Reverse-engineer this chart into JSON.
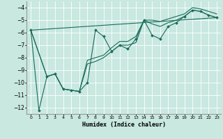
{
  "xlabel": "Humidex (Indice chaleur)",
  "bg_color": "#c8e8e0",
  "grid_color": "#ffffff",
  "line_color": "#1a6b5a",
  "xlim": [
    -0.5,
    23.5
  ],
  "ylim": [
    -12.5,
    -3.5
  ],
  "yticks": [
    -12,
    -11,
    -10,
    -9,
    -8,
    -7,
    -6,
    -5,
    -4
  ],
  "xticks": [
    0,
    1,
    2,
    3,
    4,
    5,
    6,
    7,
    8,
    9,
    10,
    11,
    12,
    13,
    14,
    15,
    16,
    17,
    18,
    19,
    20,
    21,
    22,
    23
  ],
  "series1_x": [
    0,
    1,
    2,
    3,
    4,
    5,
    6,
    7,
    8,
    9,
    10,
    11,
    12,
    13,
    14,
    15,
    16,
    17,
    18,
    19,
    20,
    21,
    22,
    23
  ],
  "series1_y": [
    -5.8,
    -12.2,
    -9.5,
    -9.3,
    -10.5,
    -10.6,
    -10.7,
    -10.0,
    -5.8,
    -6.3,
    -7.5,
    -7.0,
    -7.3,
    -6.5,
    -5.0,
    -6.2,
    -6.5,
    -5.5,
    -5.2,
    -4.7,
    -4.2,
    -4.3,
    -4.6,
    -4.8
  ],
  "series2_x": [
    0,
    2,
    3,
    4,
    5,
    6,
    7,
    8,
    9,
    10,
    11,
    12,
    13,
    14,
    15,
    16,
    17,
    18,
    19,
    20,
    21,
    22,
    23
  ],
  "series2_y": [
    -5.8,
    -9.5,
    -9.3,
    -10.5,
    -10.6,
    -10.7,
    -8.5,
    -8.3,
    -8.0,
    -7.5,
    -7.0,
    -7.0,
    -6.8,
    -5.0,
    -5.3,
    -5.5,
    -5.2,
    -5.0,
    -4.7,
    -4.2,
    -4.3,
    -4.6,
    -4.8
  ],
  "series3_x": [
    0,
    2,
    3,
    4,
    5,
    6,
    7,
    8,
    9,
    10,
    11,
    12,
    13,
    14,
    15,
    16,
    17,
    18,
    19,
    20,
    21,
    22,
    23
  ],
  "series3_y": [
    -5.8,
    -9.5,
    -9.3,
    -10.5,
    -10.6,
    -10.7,
    -8.2,
    -8.0,
    -7.8,
    -7.2,
    -6.7,
    -6.7,
    -6.3,
    -5.0,
    -5.0,
    -5.1,
    -4.9,
    -4.7,
    -4.5,
    -4.0,
    -4.1,
    -4.3,
    -4.5
  ],
  "series4_x": [
    0,
    23
  ],
  "series4_y": [
    -5.8,
    -4.8
  ]
}
